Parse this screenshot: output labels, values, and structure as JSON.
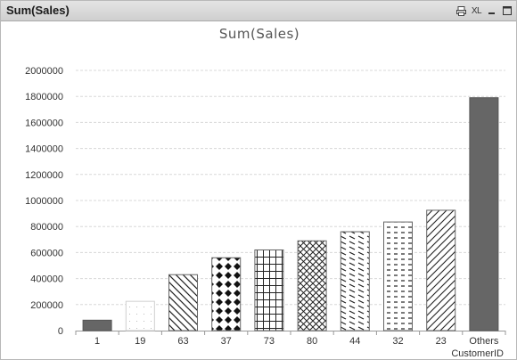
{
  "window": {
    "title": "Sum(Sales)",
    "xl_label": "XL"
  },
  "chart_data": {
    "type": "bar",
    "title": "Sum(Sales)",
    "xlabel": "CustomerID",
    "ylabel": "",
    "ylim": [
      0,
      2000000
    ],
    "yticks": [
      0,
      200000,
      400000,
      600000,
      800000,
      1000000,
      1200000,
      1400000,
      1600000,
      1800000,
      2000000
    ],
    "grid": true,
    "categories": [
      "1",
      "19",
      "63",
      "37",
      "73",
      "80",
      "44",
      "32",
      "23",
      "Others"
    ],
    "values": [
      80000,
      225000,
      430000,
      560000,
      620000,
      690000,
      760000,
      835000,
      925000,
      1790000
    ],
    "patterns": [
      "solid",
      "light",
      "diag-back",
      "diamond",
      "grid",
      "crosshatch",
      "dashed-diag",
      "dashes",
      "diag-fwd",
      "solid"
    ],
    "colors": {
      "bar_fill": "#666666",
      "pattern_ink": "#222222",
      "grid": "#d8d8d8"
    }
  }
}
